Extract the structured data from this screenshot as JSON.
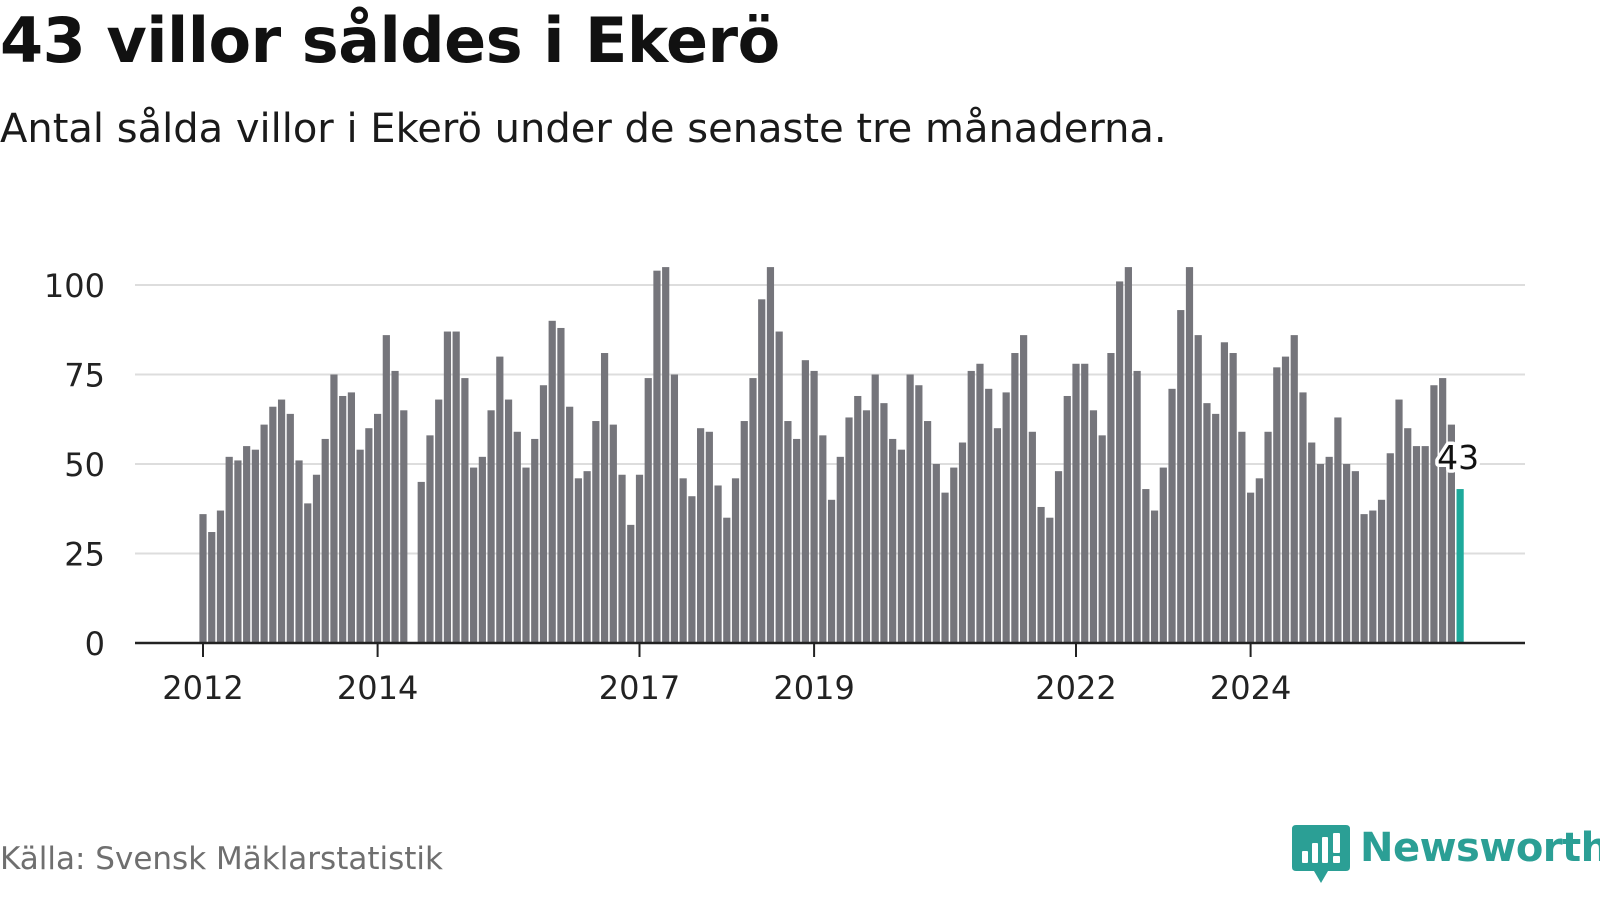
{
  "header": {
    "title": "43 villor såldes i Ekerö",
    "subtitle": "Antal sålda villor i Ekerö under de senaste tre månaderna."
  },
  "footer": {
    "source": "Källa: Svensk Mäklarstatistik",
    "brand": "Newsworthy"
  },
  "colors": {
    "bar": "#75757b",
    "highlight": "#1ea99b",
    "grid": "#dddddd",
    "axis": "#222222",
    "brand": "#2b9f95"
  },
  "chart_data": {
    "type": "bar",
    "title": "43 villor såldes i Ekerö",
    "subtitle": "Antal sålda villor i Ekerö under de senaste tre månaderna.",
    "xlabel": "",
    "ylabel": "",
    "ylim": [
      0,
      105
    ],
    "yticks": [
      0,
      25,
      50,
      75,
      100
    ],
    "grid": true,
    "x_start": "2012-01",
    "x_end": "2024-01",
    "xticks": [
      {
        "label": "2012",
        "index": 0
      },
      {
        "label": "2014",
        "index": 20
      },
      {
        "label": "2017",
        "index": 50
      },
      {
        "label": "2019",
        "index": 70
      },
      {
        "label": "2022",
        "index": 100
      },
      {
        "label": "2024",
        "index": 120
      }
    ],
    "values": [
      36,
      31,
      37,
      52,
      51,
      55,
      54,
      61,
      66,
      68,
      64,
      51,
      39,
      47,
      57,
      75,
      69,
      70,
      54,
      60,
      64,
      86,
      76,
      65,
      null,
      45,
      58,
      68,
      87,
      87,
      74,
      49,
      52,
      65,
      80,
      68,
      59,
      49,
      57,
      72,
      90,
      88,
      66,
      46,
      48,
      62,
      81,
      61,
      47,
      33,
      47,
      74,
      104,
      105,
      75,
      46,
      41,
      60,
      59,
      44,
      35,
      46,
      62,
      74,
      96,
      105,
      87,
      62,
      57,
      79,
      76,
      58,
      40,
      52,
      63,
      69,
      65,
      75,
      67,
      57,
      54,
      75,
      72,
      62,
      50,
      42,
      49,
      56,
      76,
      78,
      71,
      60,
      70,
      81,
      86,
      59,
      38,
      35,
      48,
      69,
      78,
      78,
      65,
      58,
      81,
      101,
      105,
      76,
      43,
      37,
      49,
      71,
      93,
      105,
      86,
      67,
      64,
      84,
      81,
      59,
      42,
      46,
      59,
      77,
      80,
      86,
      70,
      56,
      50,
      52,
      63,
      50,
      48,
      36,
      37,
      40,
      53,
      68,
      60,
      55,
      55,
      72,
      74,
      61,
      43
    ],
    "highlight": {
      "index": 144,
      "value": 43,
      "label": "43"
    }
  }
}
